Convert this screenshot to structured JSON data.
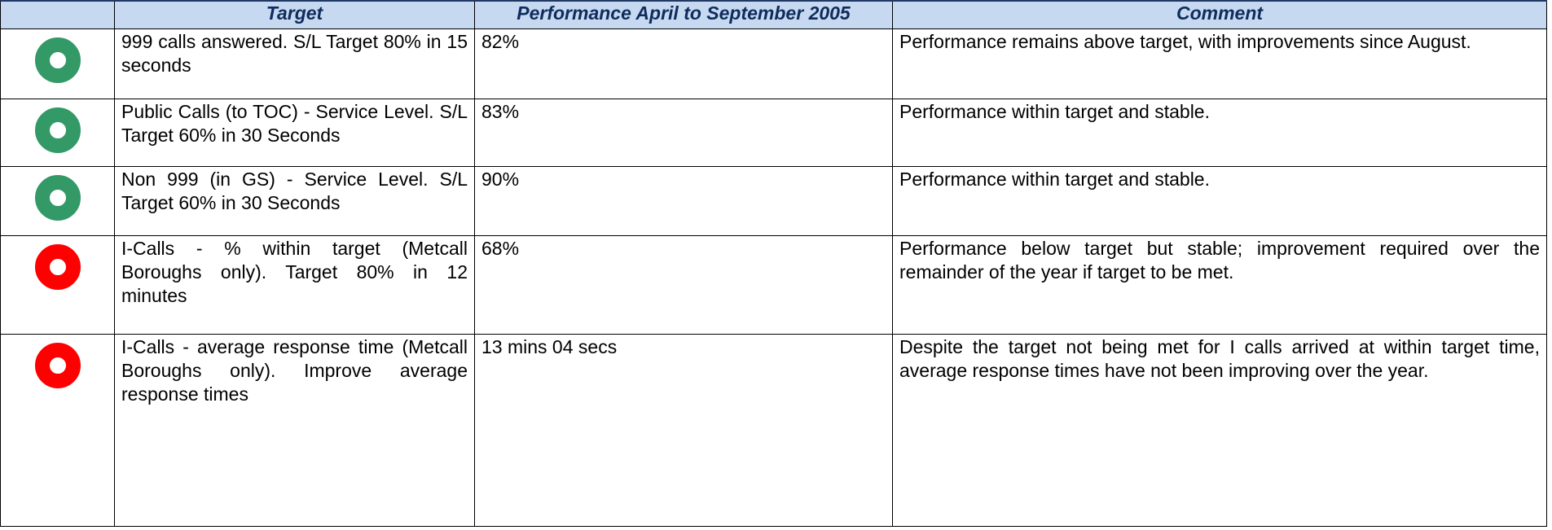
{
  "table": {
    "header": [
      "Target",
      "Performance April to September 2005",
      "Comment"
    ],
    "rows": [
      {
        "color": "#339966",
        "target": "999 calls answered.  S/L Target 80% in 15 seconds",
        "performance": "82%",
        "comment": "Performance remains above target, with improvements since August."
      },
      {
        "color": "#339966",
        "target": "Public Calls (to TOC)  - Service Level.  S/L Target 60% in 30 Seconds",
        "performance": "83%",
        "comment": "Performance within target and stable."
      },
      {
        "color": "#339966",
        "target": "Non 999 (in GS) - Service Level. S/L Target 60% in 30 Seconds",
        "performance": "90%",
        "comment": "Performance within target and stable."
      },
      {
        "color": "#ff0000",
        "target": "I-Calls - % within target (Metcall Boroughs only).  Target 80% in 12 minutes",
        "performance": "68%",
        "comment": "Performance below target but stable; improvement required over the remainder of the year if target to be met."
      },
      {
        "color": "#ff0000",
        "target": "I-Calls - average response time (Metcall Boroughs only).  Improve average response times",
        "performance": "13 mins 04 secs",
        "comment": "Despite the target not being met for I calls arrived at within target time, average response times have not been improving over the year."
      }
    ]
  }
}
